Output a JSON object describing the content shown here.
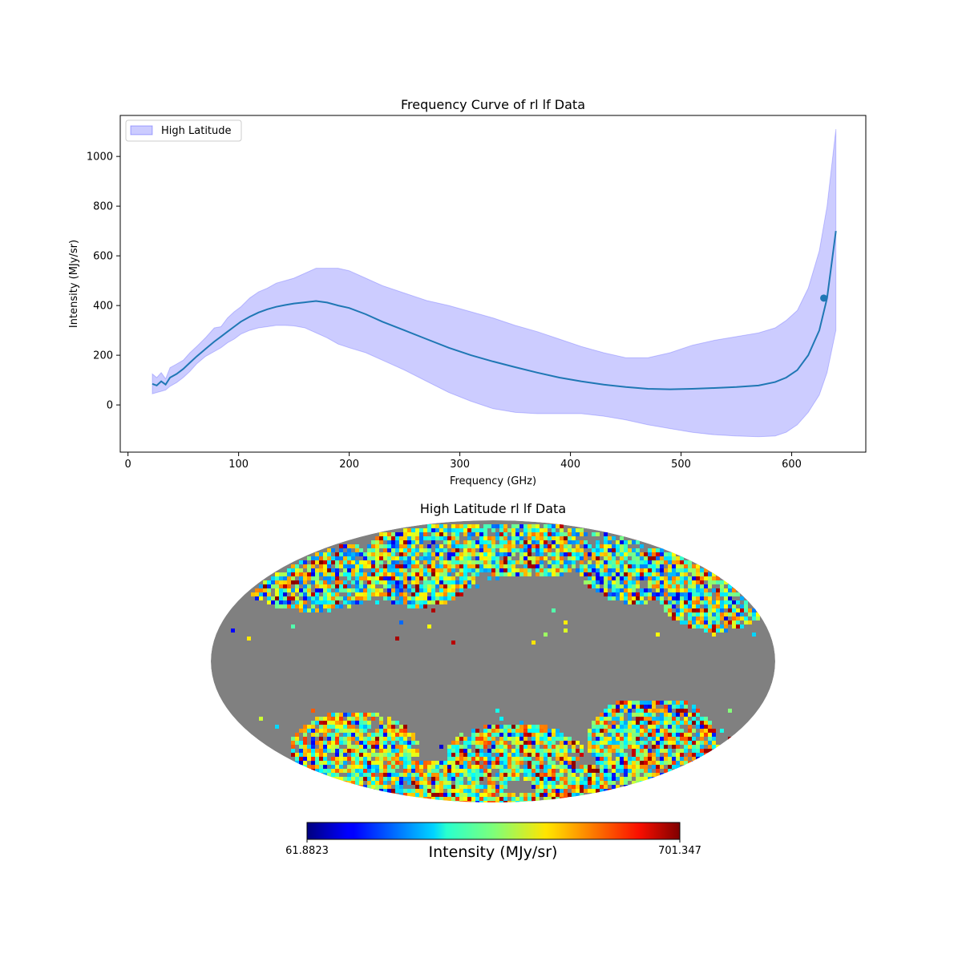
{
  "chart_data": [
    {
      "type": "line",
      "title": "Frequency Curve of rl lf Data",
      "xlabel": "Frequency (GHz)",
      "ylabel": "Intensity (MJy/sr)",
      "xlim": [
        -7,
        667
      ],
      "ylim": [
        -190,
        1165
      ],
      "xticks": [
        0,
        100,
        200,
        300,
        400,
        500,
        600
      ],
      "yticks": [
        0,
        200,
        400,
        600,
        800,
        1000
      ],
      "grid": false,
      "legend": {
        "position": "top-left",
        "entries": [
          "High Latitude"
        ]
      },
      "colors": {
        "line": "#1f77b4",
        "band": "#0000ff",
        "band_edge": "#0000ff"
      },
      "series": [
        {
          "name": "High Latitude",
          "kind": "band+line",
          "x": [
            22,
            26,
            30,
            34,
            38,
            44,
            50,
            56,
            62,
            70,
            78,
            84,
            90,
            96,
            102,
            110,
            118,
            126,
            134,
            142,
            150,
            160,
            170,
            180,
            190,
            200,
            215,
            230,
            250,
            270,
            290,
            310,
            330,
            350,
            370,
            390,
            410,
            430,
            450,
            470,
            490,
            510,
            530,
            550,
            570,
            585,
            595,
            605,
            615,
            625,
            632,
            640
          ],
          "mean": [
            85,
            78,
            95,
            82,
            110,
            125,
            145,
            170,
            195,
            225,
            255,
            275,
            295,
            315,
            335,
            355,
            372,
            385,
            395,
            402,
            408,
            413,
            418,
            412,
            400,
            390,
            365,
            335,
            300,
            265,
            230,
            200,
            175,
            152,
            130,
            110,
            95,
            82,
            72,
            65,
            63,
            65,
            68,
            72,
            78,
            92,
            110,
            140,
            200,
            300,
            430,
            700
          ],
          "upper": [
            125,
            110,
            130,
            105,
            150,
            165,
            180,
            210,
            235,
            270,
            310,
            315,
            350,
            375,
            395,
            430,
            455,
            470,
            490,
            500,
            510,
            530,
            550,
            550,
            550,
            540,
            510,
            480,
            450,
            420,
            400,
            375,
            350,
            320,
            295,
            265,
            235,
            210,
            190,
            190,
            210,
            240,
            260,
            275,
            290,
            310,
            340,
            380,
            470,
            620,
            800,
            1110
          ],
          "lower": [
            45,
            50,
            55,
            60,
            75,
            90,
            110,
            135,
            165,
            195,
            215,
            230,
            250,
            265,
            285,
            300,
            310,
            315,
            320,
            320,
            318,
            310,
            290,
            270,
            245,
            230,
            210,
            180,
            140,
            95,
            50,
            15,
            -15,
            -30,
            -35,
            -35,
            -35,
            -45,
            -60,
            -80,
            -95,
            -110,
            -120,
            -125,
            -128,
            -125,
            -110,
            -80,
            -30,
            40,
            130,
            300
          ],
          "marker": {
            "x": 629,
            "y": 430
          }
        }
      ]
    },
    {
      "type": "heatmap",
      "projection": "mollweide",
      "title": "High Latitude rl lf Data",
      "colormap": "jet",
      "mask_color": "#808080",
      "colorbar": {
        "label": "Intensity (MJy/sr)",
        "min_label": "61.8823",
        "max_label": "701.347",
        "min": 61.8823,
        "max": 701.347,
        "orientation": "horizontal"
      }
    }
  ]
}
